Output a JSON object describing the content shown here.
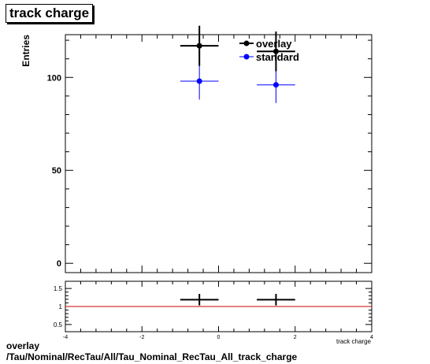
{
  "page": {
    "title": "track charge",
    "footer_line1": "overlay",
    "footer_line2": "/Tau/Nominal/RecTau/All/Tau_Nominal_RecTau_All_track_charge"
  },
  "chart_data": [
    {
      "type": "scatter",
      "title": "track charge",
      "xlabel": "track charge",
      "ylabel": "Entries",
      "xlim": [
        -4,
        4
      ],
      "ylim": [
        -5,
        123
      ],
      "y_tick_labels": [
        "0",
        "50",
        "100"
      ],
      "legend_position": "top-right",
      "series": [
        {
          "name": "overlay",
          "color": "#000000",
          "x": [
            -0.5,
            1.5
          ],
          "y": [
            117,
            114
          ],
          "xerr": [
            0.5,
            0.5
          ],
          "yerr": [
            10.8,
            10.7
          ]
        },
        {
          "name": "standard",
          "color": "#0000ff",
          "x": [
            -0.5,
            1.5
          ],
          "y": [
            98,
            96
          ],
          "xerr": [
            0.5,
            0.5
          ],
          "yerr": [
            9.9,
            9.8
          ]
        }
      ]
    },
    {
      "type": "scatter",
      "xlabel": "track charge",
      "xlim": [
        -4,
        4
      ],
      "ylim": [
        0.3,
        1.7
      ],
      "x_tick_labels": [
        "-4",
        "-2",
        "0",
        "2",
        "4"
      ],
      "y_tick_labels": [
        "0.5",
        "1",
        "1.5"
      ],
      "reference_line": 1,
      "reference_color": "#cc0000",
      "series": [
        {
          "color": "#000000",
          "x": [
            -0.5,
            1.5
          ],
          "y": [
            1.19,
            1.19
          ],
          "xerr": [
            0.5,
            0.5
          ],
          "yerr": [
            0.16,
            0.16
          ]
        }
      ]
    }
  ]
}
